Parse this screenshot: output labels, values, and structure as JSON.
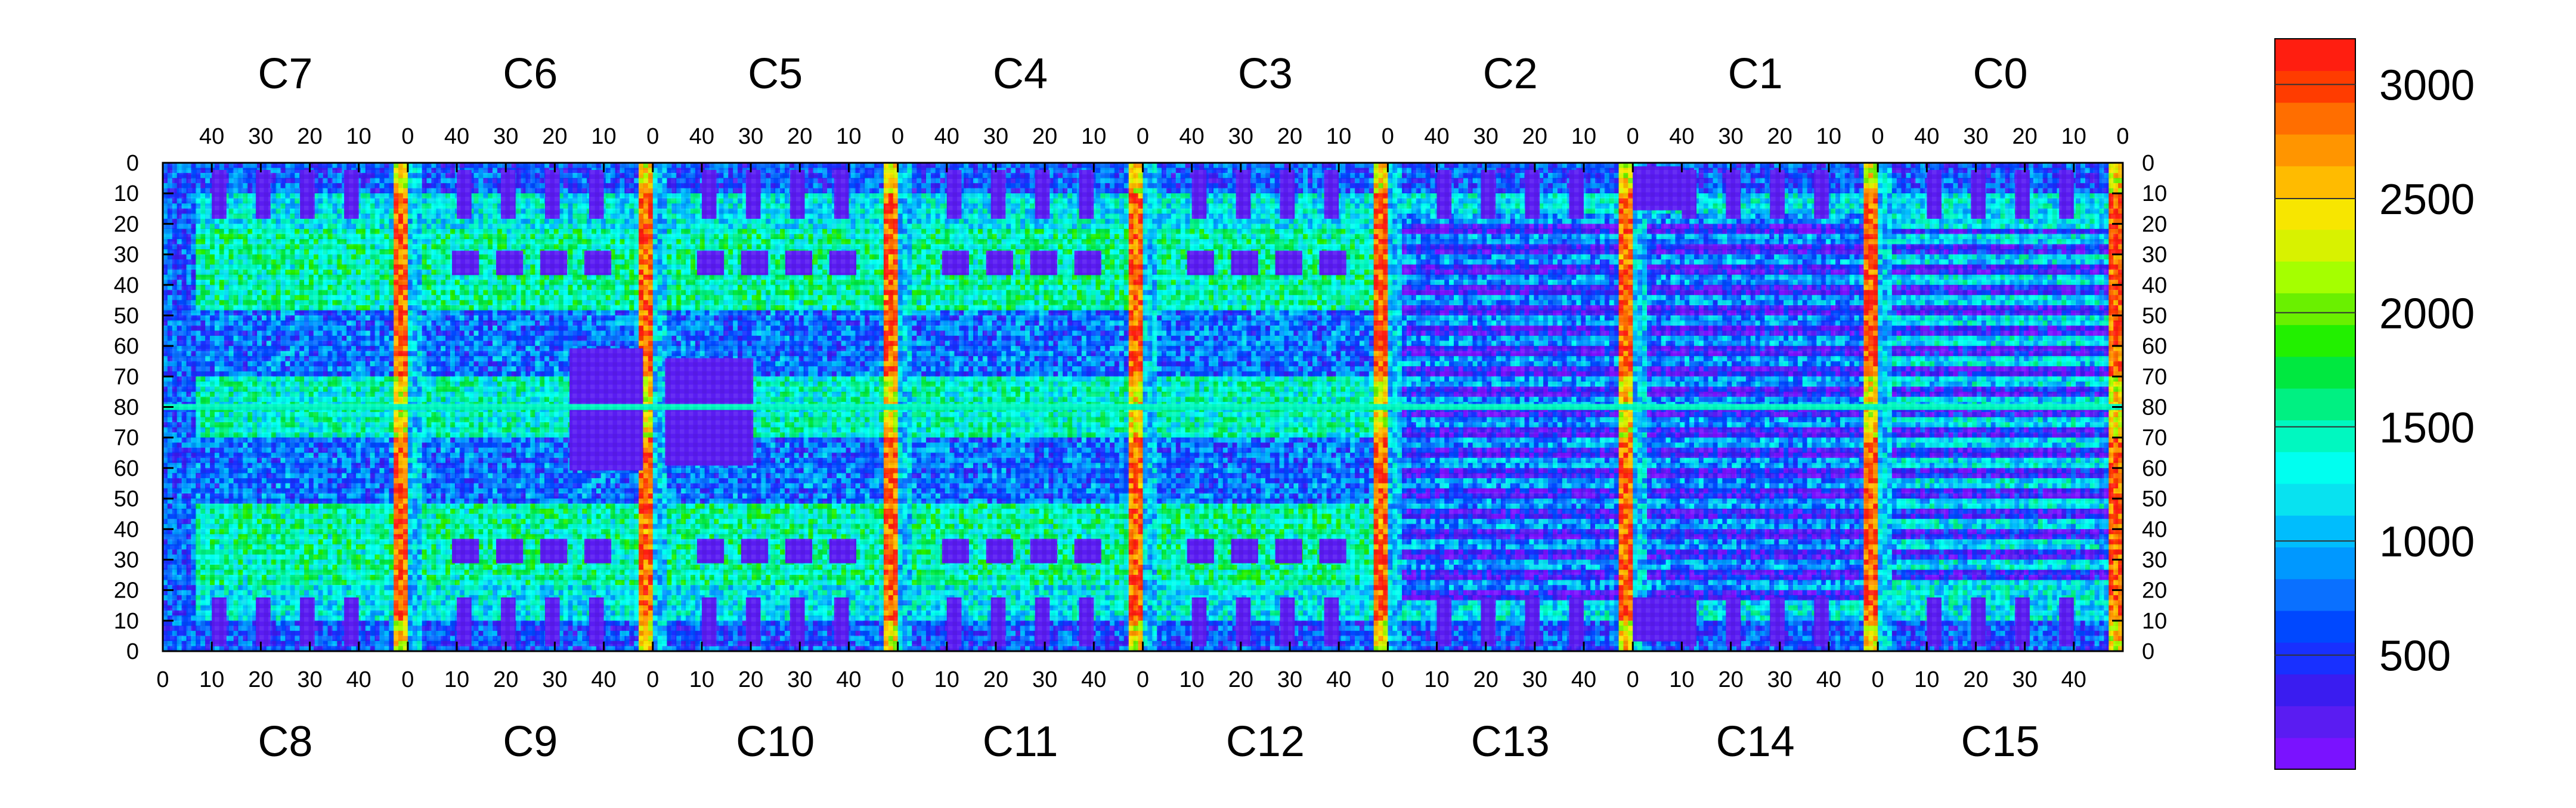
{
  "chart_data": {
    "type": "heatmap",
    "title": "",
    "xlabel": "",
    "ylabel": "",
    "chips_top": [
      "C7",
      "C6",
      "C5",
      "C4",
      "C3",
      "C2",
      "C1",
      "C0"
    ],
    "chips_bottom": [
      "C8",
      "C9",
      "C10",
      "C11",
      "C12",
      "C13",
      "C14",
      "C15"
    ],
    "top_x_ticks": [
      "40",
      "30",
      "20",
      "10",
      "0"
    ],
    "bottom_x_ticks": [
      "0",
      "10",
      "20",
      "30",
      "40"
    ],
    "y_ticks": [
      "0",
      "10",
      "20",
      "30",
      "40",
      "50",
      "60",
      "70",
      "80",
      "70",
      "60",
      "50",
      "40",
      "30",
      "20",
      "10",
      "0"
    ],
    "colorbar": {
      "min": 0,
      "max": 3200,
      "ticks": [
        500,
        1000,
        1500,
        2000,
        2500,
        3000
      ],
      "tick_labels": [
        "500",
        "1000",
        "1500",
        "2000",
        "2500",
        "3000"
      ],
      "levels": [
        "#7a12ff",
        "#5a1cf2",
        "#3a1cf0",
        "#1830ff",
        "#0048ff",
        "#0a70ff",
        "#0098ff",
        "#00bdfd",
        "#08e2f0",
        "#00fff0",
        "#00f8c0",
        "#00f082",
        "#00e840",
        "#22f000",
        "#6af000",
        "#a5ff00",
        "#d8f200",
        "#f7e600",
        "#ffbb00",
        "#ff9500",
        "#ff6e00",
        "#ff3c00",
        "#ff1e10"
      ]
    },
    "features": {
      "red_columns_per_chip": 1,
      "central_horizontal_band_row": 80,
      "low_value_pads": "rows 0-12 and 28-35 near chip bonding areas"
    }
  }
}
